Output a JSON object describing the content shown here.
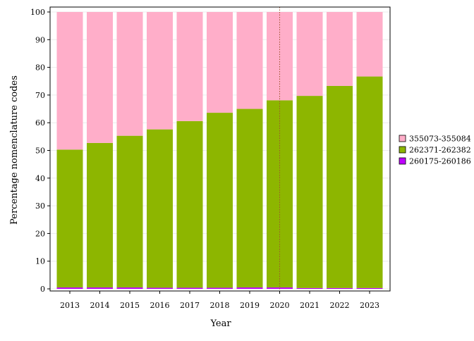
{
  "chart_data": {
    "type": "bar",
    "stacked": true,
    "xlabel": "Year",
    "ylabel": "Percentage nomenclature codes",
    "ylim": [
      0,
      100
    ],
    "yticks": [
      0,
      10,
      20,
      30,
      40,
      50,
      60,
      70,
      80,
      90,
      100
    ],
    "categories": [
      "2013",
      "2014",
      "2015",
      "2016",
      "2017",
      "2018",
      "2019",
      "2020",
      "2021",
      "2022",
      "2023"
    ],
    "series": [
      {
        "name": "260175-260186",
        "color": "#bf00ff",
        "values": [
          0.5,
          0.5,
          0.5,
          0.4,
          0.4,
          0.4,
          0.5,
          0.5,
          0.3,
          0.3,
          0.3
        ]
      },
      {
        "name": "262371-262382",
        "color": "#8db600",
        "values": [
          49.8,
          52.2,
          54.8,
          57.2,
          60.2,
          63.2,
          64.5,
          67.6,
          69.4,
          73.0,
          76.4
        ]
      },
      {
        "name": "355073-355084",
        "color": "#ffaec9",
        "values": [
          49.7,
          47.3,
          44.7,
          42.4,
          39.4,
          36.4,
          35.0,
          31.9,
          30.3,
          26.7,
          23.3
        ]
      }
    ],
    "legend_order": [
      "355073-355084",
      "262371-262382",
      "260175-260186"
    ],
    "legend_position": "right",
    "reference_line": {
      "x": "2020",
      "style": "dotted",
      "color": "#a0522d"
    },
    "grid": true
  }
}
